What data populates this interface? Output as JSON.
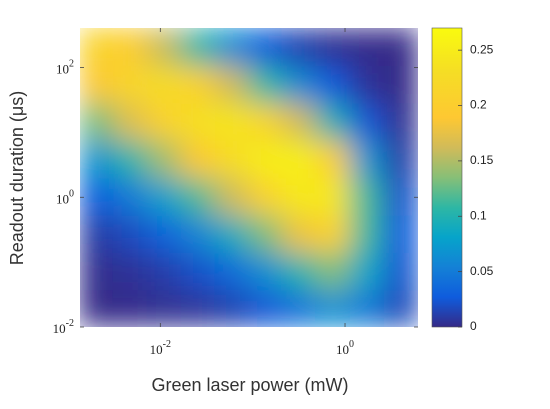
{
  "chart_data": {
    "type": "heatmap",
    "x_label": "Green laser power (mW)",
    "y_label": "Readout duration (μs)",
    "x_log": true,
    "y_log": true,
    "colormap": "parula",
    "x": [
      0.00204,
      0.00479,
      0.011,
      0.0257,
      0.0589,
      0.138,
      0.316,
      0.741,
      1.74,
      4.07
    ],
    "y": [
      0.0195,
      0.0724,
      0.275,
      1.02,
      3.89,
      14.8,
      55,
      209
    ],
    "values": [
      [
        0.0,
        0.001,
        0.003,
        0.006,
        0.013,
        0.025,
        0.044,
        0.067,
        0.049,
        0.016
      ],
      [
        0.002,
        0.005,
        0.011,
        0.021,
        0.038,
        0.064,
        0.101,
        0.133,
        0.084,
        0.023
      ],
      [
        0.009,
        0.018,
        0.033,
        0.056,
        0.09,
        0.132,
        0.179,
        0.206,
        0.112,
        0.027
      ],
      [
        0.028,
        0.049,
        0.078,
        0.117,
        0.161,
        0.206,
        0.244,
        0.244,
        0.113,
        0.021
      ],
      [
        0.069,
        0.104,
        0.145,
        0.188,
        0.225,
        0.25,
        0.254,
        0.203,
        0.07,
        0.01
      ],
      [
        0.13,
        0.17,
        0.206,
        0.232,
        0.24,
        0.215,
        0.164,
        0.097,
        0.025,
        0.003
      ],
      [
        0.187,
        0.214,
        0.227,
        0.207,
        0.162,
        0.109,
        0.062,
        0.027,
        0.005,
        0.0
      ],
      [
        0.21,
        0.198,
        0.158,
        0.108,
        0.063,
        0.031,
        0.013,
        0.004,
        0.001,
        0.0
      ]
    ],
    "xlim": [
      0.00135,
      6.17
    ],
    "ylim": [
      0.01,
      407
    ],
    "xticks": [
      {
        "value": 0.01,
        "label": "10^-2"
      },
      {
        "value": 1,
        "label": "10^0"
      }
    ],
    "yticks": [
      {
        "value": 0.01,
        "label": "10^-2"
      },
      {
        "value": 1,
        "label": "10^0"
      },
      {
        "value": 100,
        "label": "10^2"
      }
    ],
    "clim": [
      0,
      0.27
    ],
    "cticks": [
      0,
      0.05,
      0.1,
      0.15,
      0.2,
      0.25
    ]
  }
}
